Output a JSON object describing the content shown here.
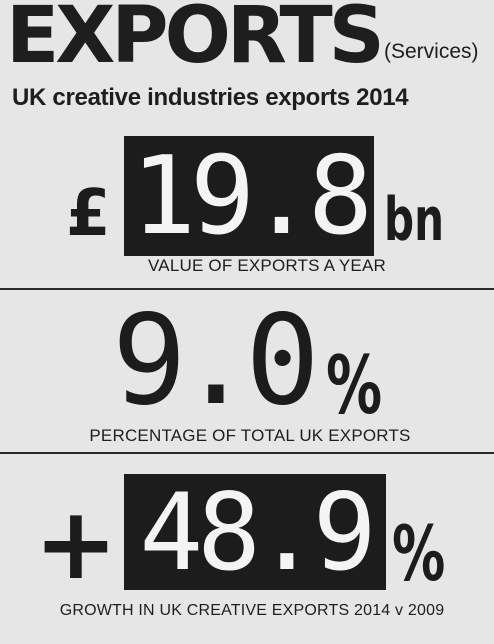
{
  "header": {
    "title": "EXPORTS",
    "title_note": "(Services)",
    "subtitle": "UK creative industries exports 2014"
  },
  "stats": [
    {
      "prefix": "£",
      "value": "19.8",
      "suffix": "bn",
      "caption": "VALUE OF EXPORTS A YEAR"
    },
    {
      "prefix": "",
      "value": "9.0",
      "suffix": "%",
      "caption": "PERCENTAGE OF TOTAL UK EXPORTS"
    },
    {
      "prefix": "+",
      "value": "48.9",
      "suffix": "%",
      "caption": "GROWTH IN UK CREATIVE EXPORTS 2014 v 2009"
    }
  ],
  "colors": {
    "background": "#e6e6e6",
    "box": "#1c1c1c",
    "box_text": "#f4f4f4",
    "text": "#1e1e1e"
  }
}
